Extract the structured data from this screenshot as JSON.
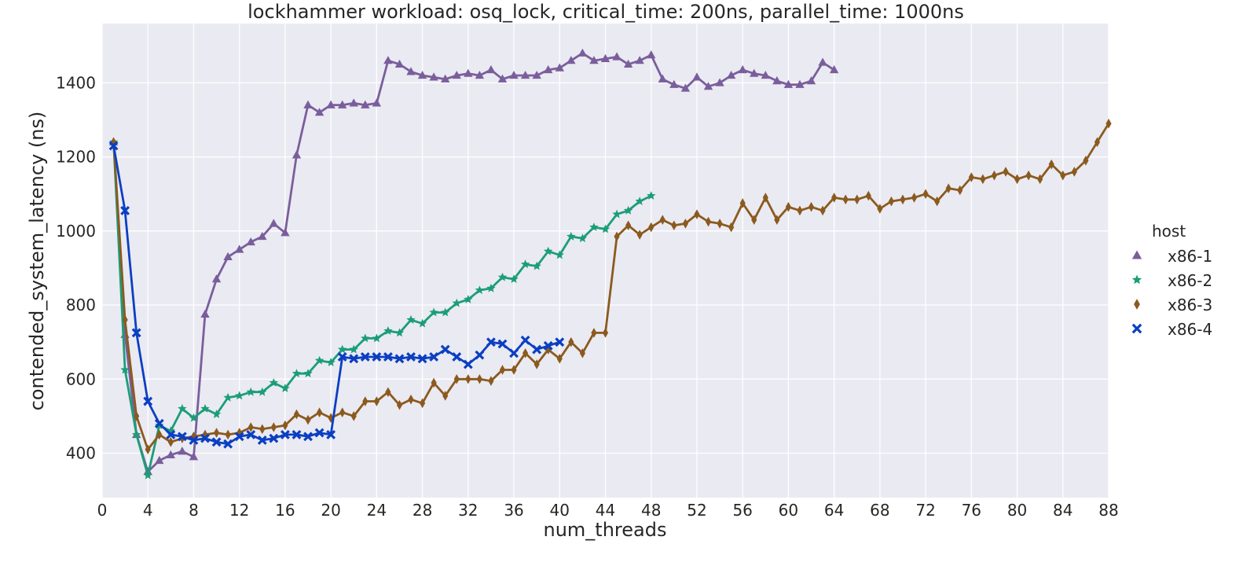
{
  "chart_data": {
    "type": "line",
    "title": "lockhammer workload: osq_lock, critical_time: 200ns, parallel_time: 1000ns",
    "xlabel": "num_threads",
    "ylabel": "contended_system_latency (ns)",
    "xlim": [
      0,
      88
    ],
    "ylim": [
      280,
      1560
    ],
    "xticks": [
      "0",
      "4",
      "8",
      "12",
      "16",
      "20",
      "24",
      "28",
      "32",
      "36",
      "40",
      "44",
      "48",
      "52",
      "56",
      "60",
      "64",
      "68",
      "72",
      "76",
      "80",
      "84",
      "88"
    ],
    "yticks": [
      "400",
      "600",
      "800",
      "1000",
      "1200",
      "1400"
    ],
    "grid": true,
    "background": "#EAEAF2",
    "legend_title": "host",
    "legend_position": "right",
    "series": [
      {
        "name": "x86-1",
        "color": "#7A5E9C",
        "marker": "triangle",
        "x": [
          1,
          2,
          3,
          4,
          5,
          6,
          7,
          8,
          9,
          10,
          11,
          12,
          13,
          14,
          15,
          16,
          17,
          18,
          19,
          20,
          21,
          22,
          23,
          24,
          25,
          26,
          27,
          28,
          29,
          30,
          31,
          32,
          33,
          34,
          35,
          36,
          37,
          38,
          39,
          40,
          41,
          42,
          43,
          44,
          45,
          46,
          47,
          48,
          49,
          50,
          51,
          52,
          53,
          54,
          55,
          56,
          57,
          58,
          59,
          60,
          61,
          62,
          63,
          64
        ],
        "y": [
          1240,
          720,
          450,
          350,
          380,
          395,
          405,
          390,
          775,
          870,
          930,
          950,
          970,
          985,
          1020,
          995,
          1205,
          1340,
          1320,
          1340,
          1340,
          1345,
          1340,
          1345,
          1460,
          1450,
          1430,
          1420,
          1415,
          1410,
          1420,
          1425,
          1420,
          1435,
          1410,
          1420,
          1420,
          1420,
          1435,
          1440,
          1460,
          1480,
          1460,
          1465,
          1470,
          1450,
          1460,
          1475,
          1410,
          1395,
          1385,
          1415,
          1390,
          1400,
          1420,
          1435,
          1425,
          1420,
          1405,
          1395,
          1395,
          1405,
          1455,
          1435
        ]
      },
      {
        "name": "x86-2",
        "color": "#1B9E77",
        "marker": "star",
        "x": [
          1,
          2,
          3,
          4,
          5,
          6,
          7,
          8,
          9,
          10,
          11,
          12,
          13,
          14,
          15,
          16,
          17,
          18,
          19,
          20,
          21,
          22,
          23,
          24,
          25,
          26,
          27,
          28,
          29,
          30,
          31,
          32,
          33,
          34,
          35,
          36,
          37,
          38,
          39,
          40,
          41,
          42,
          43,
          44,
          45,
          46,
          47,
          48
        ],
        "y": [
          1240,
          625,
          450,
          340,
          475,
          460,
          520,
          495,
          520,
          505,
          550,
          555,
          565,
          565,
          590,
          575,
          615,
          615,
          650,
          645,
          680,
          680,
          710,
          710,
          730,
          725,
          760,
          750,
          780,
          780,
          805,
          815,
          840,
          845,
          875,
          870,
          910,
          905,
          945,
          935,
          985,
          980,
          1010,
          1005,
          1045,
          1055,
          1080,
          1095
        ]
      },
      {
        "name": "x86-3",
        "color": "#8B5A1E",
        "marker": "diamond",
        "x": [
          1,
          2,
          3,
          4,
          5,
          6,
          7,
          8,
          9,
          10,
          11,
          12,
          13,
          14,
          15,
          16,
          17,
          18,
          19,
          20,
          21,
          22,
          23,
          24,
          25,
          26,
          27,
          28,
          29,
          30,
          31,
          32,
          33,
          34,
          35,
          36,
          37,
          38,
          39,
          40,
          41,
          42,
          43,
          44,
          45,
          46,
          47,
          48,
          49,
          50,
          51,
          52,
          53,
          54,
          55,
          56,
          57,
          58,
          59,
          60,
          61,
          62,
          63,
          64,
          65,
          66,
          67,
          68,
          69,
          70,
          71,
          72,
          73,
          74,
          75,
          76,
          77,
          78,
          79,
          80,
          81,
          82,
          83,
          84,
          85,
          86,
          87,
          88
        ],
        "y": [
          1240,
          760,
          500,
          410,
          450,
          430,
          440,
          445,
          450,
          455,
          450,
          455,
          470,
          465,
          470,
          475,
          505,
          490,
          510,
          495,
          510,
          500,
          540,
          540,
          565,
          530,
          545,
          535,
          590,
          555,
          600,
          600,
          600,
          595,
          625,
          625,
          670,
          640,
          680,
          655,
          700,
          670,
          725,
          725,
          985,
          1015,
          990,
          1010,
          1030,
          1015,
          1020,
          1045,
          1025,
          1020,
          1010,
          1075,
          1030,
          1090,
          1030,
          1065,
          1055,
          1065,
          1055,
          1090,
          1085,
          1085,
          1095,
          1060,
          1080,
          1085,
          1090,
          1100,
          1080,
          1115,
          1110,
          1145,
          1140,
          1150,
          1160,
          1140,
          1150,
          1140,
          1180,
          1150,
          1160,
          1190,
          1240,
          1290
        ]
      },
      {
        "name": "x86-4",
        "color": "#0B3FC2",
        "marker": "x",
        "x": [
          1,
          2,
          3,
          4,
          5,
          6,
          7,
          8,
          9,
          10,
          11,
          12,
          13,
          14,
          15,
          16,
          17,
          18,
          19,
          20,
          21,
          22,
          23,
          24,
          25,
          26,
          27,
          28,
          29,
          30,
          31,
          32,
          33,
          34,
          35,
          36,
          37,
          38,
          39,
          40
        ],
        "y": [
          1230,
          1055,
          725,
          540,
          480,
          450,
          445,
          435,
          440,
          430,
          425,
          445,
          450,
          435,
          440,
          450,
          450,
          445,
          455,
          450,
          660,
          655,
          660,
          660,
          660,
          655,
          660,
          655,
          660,
          680,
          660,
          640,
          665,
          700,
          695,
          670,
          705,
          680,
          690,
          700
        ]
      }
    ]
  }
}
